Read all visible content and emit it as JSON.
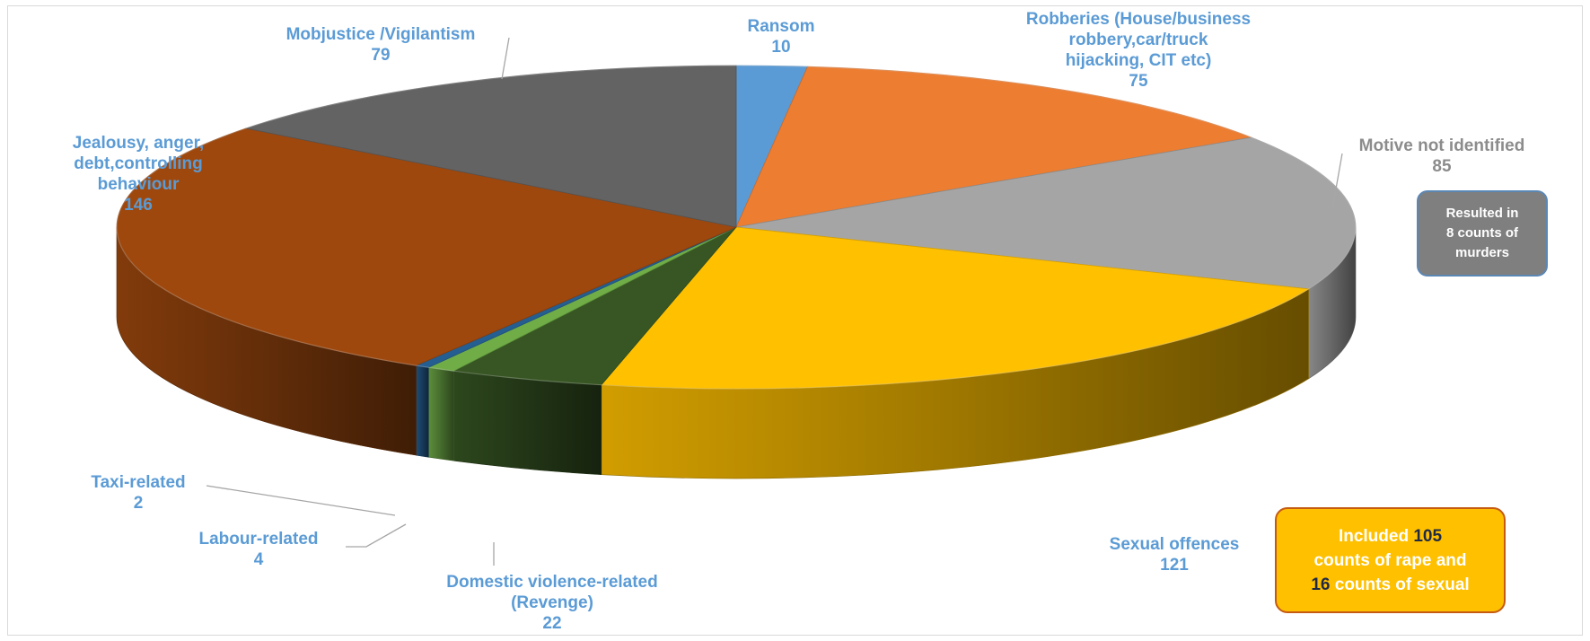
{
  "chart_data": {
    "type": "pie",
    "style": "3d",
    "title": "",
    "slices": [
      {
        "label": "Ransom",
        "value": 10,
        "color": "#5b9bd5"
      },
      {
        "label": "Robberies (House/business robbery,car/truck hijacking, CIT etc)",
        "label_lines": [
          "Robberies (House/business",
          "robbery,car/truck",
          "hijacking, CIT etc)"
        ],
        "value": 75,
        "color": "#ed7d31"
      },
      {
        "label": "Motive not identified",
        "label_lines": [
          "Motive not identified"
        ],
        "value": 85,
        "color": "#a5a5a5"
      },
      {
        "label": "Sexual offences",
        "label_lines": [
          "Sexual offences"
        ],
        "value": 121,
        "color": "#ffc000"
      },
      {
        "label": "Domestic violence-related (Revenge)",
        "label_lines": [
          "Domestic violence-related",
          "(Revenge)"
        ],
        "value": 22,
        "color": "#375623"
      },
      {
        "label": "Labour-related",
        "label_lines": [
          "Labour-related"
        ],
        "value": 4,
        "color": "#70ad47"
      },
      {
        "label": "Taxi-related",
        "label_lines": [
          "Taxi-related"
        ],
        "value": 2,
        "color": "#255e91"
      },
      {
        "label": "Jealousy, anger, debt,controlling behaviour",
        "label_lines": [
          "Jealousy, anger,",
          "debt,controlling",
          "behaviour"
        ],
        "value": 146,
        "color": "#9e480e"
      },
      {
        "label": "Mobjustice /Vigilantism",
        "label_lines": [
          "Mobjustice /Vigilantism"
        ],
        "value": 79,
        "color": "#636363"
      }
    ],
    "annotations": [
      {
        "text": "Resulted in 8 counts of murders",
        "lines": [
          "Resulted in",
          "8 counts of",
          "murders"
        ],
        "refers_to": "Motive not identified"
      },
      {
        "text": "Included 105 counts of rape and 16 counts of sexual",
        "refers_to": "Sexual offences"
      }
    ]
  },
  "notes": {
    "motive": {
      "lines": [
        "Resulted in",
        "8 counts of",
        "murders"
      ]
    },
    "sexual": {
      "line1_prefix": "Included ",
      "line1_num": "105",
      "line2": "counts of rape and",
      "line3_num": "16",
      "line3_suffix": " counts of sexual"
    }
  }
}
